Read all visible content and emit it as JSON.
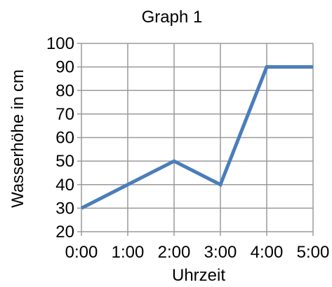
{
  "chart_data": {
    "type": "line",
    "title": "Graph 1",
    "xlabel": "Uhrzeit",
    "ylabel": "Wasserhöhe in cm",
    "categories": [
      "0:00",
      "1:00",
      "2:00",
      "3:00",
      "4:00",
      "5:00"
    ],
    "series": [
      {
        "values": [
          30,
          40,
          50,
          40,
          90,
          90
        ]
      }
    ],
    "ylim": [
      20,
      100
    ],
    "yticks": [
      20,
      30,
      40,
      50,
      60,
      70,
      80,
      90,
      100
    ],
    "grid": true,
    "legend": "none",
    "line_color": "#4a7ebb",
    "grid_color": "#9a9a9a"
  }
}
